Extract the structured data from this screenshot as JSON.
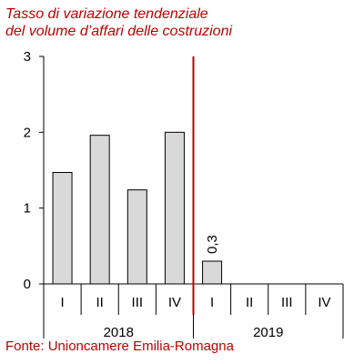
{
  "chart_data": {
    "type": "bar",
    "title": "Tasso di variazione tendenziale del volume d’affari delle costruzioni",
    "title_lines": [
      "Tasso di variazione tendenziale",
      "del volume d’affari delle costruzioni"
    ],
    "categories": [
      "I",
      "II",
      "III",
      "IV",
      "I",
      "II",
      "III",
      "IV"
    ],
    "groups": [
      {
        "label": "2018",
        "categories": [
          "I",
          "II",
          "III",
          "IV"
        ]
      },
      {
        "label": "2019",
        "categories": [
          "I",
          "II",
          "III",
          "IV"
        ]
      }
    ],
    "values": [
      1.47,
      1.96,
      1.24,
      2.0,
      0.3,
      null,
      null,
      null
    ],
    "data_labels": [
      null,
      null,
      null,
      null,
      "0,3",
      null,
      null,
      null
    ],
    "yticks": [
      "0",
      "1",
      "2",
      "3"
    ],
    "ylim": [
      0,
      3
    ],
    "grid": false,
    "reference_line": {
      "after_category_index": 3,
      "color": "#c00000"
    },
    "bar_color": "#d9d9d9",
    "bar_stroke": "#000000",
    "text_color": "#c00000",
    "source": "Fonte: Unioncamere Emilia-Romagna"
  }
}
